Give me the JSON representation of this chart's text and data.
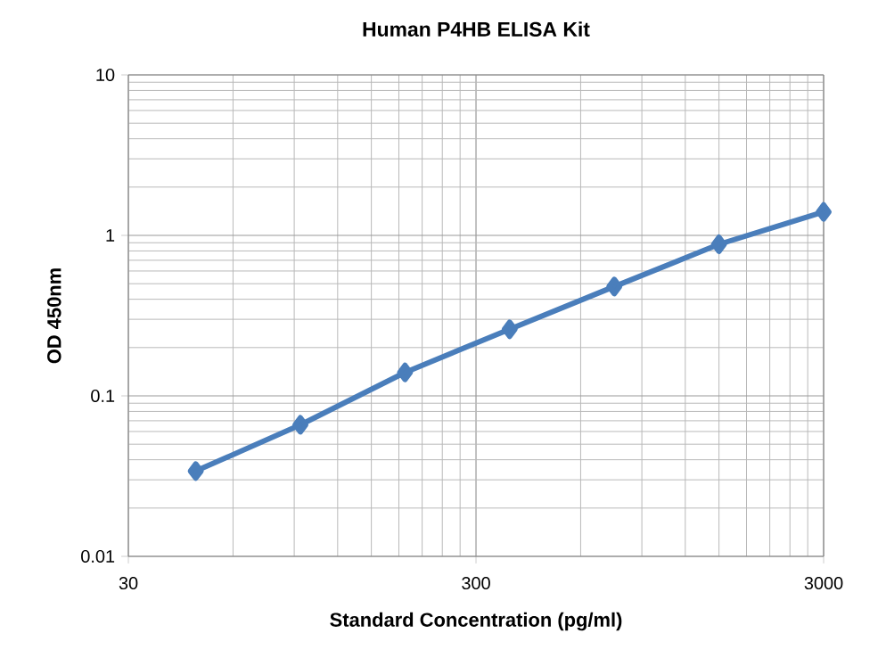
{
  "chart_data": {
    "type": "line",
    "title": "Human P4HB ELISA Kit",
    "xlabel": "Standard Concentration (pg/ml)",
    "ylabel": "OD 450nm",
    "x": [
      46.875,
      93.75,
      187.5,
      375,
      750,
      1500,
      3000
    ],
    "series": [
      {
        "color": "#4a7ebb",
        "values": [
          0.034,
          0.066,
          0.14,
          0.26,
          0.48,
          0.88,
          1.4
        ]
      }
    ],
    "log": "xy",
    "xlim": [
      30,
      3000
    ],
    "ylim": [
      0.01,
      10
    ],
    "xticks": [
      30,
      300,
      3000
    ],
    "yticks": [
      0.01,
      0.1,
      1,
      10
    ],
    "grid": true,
    "marker": "diamond",
    "line_style": "solid"
  }
}
